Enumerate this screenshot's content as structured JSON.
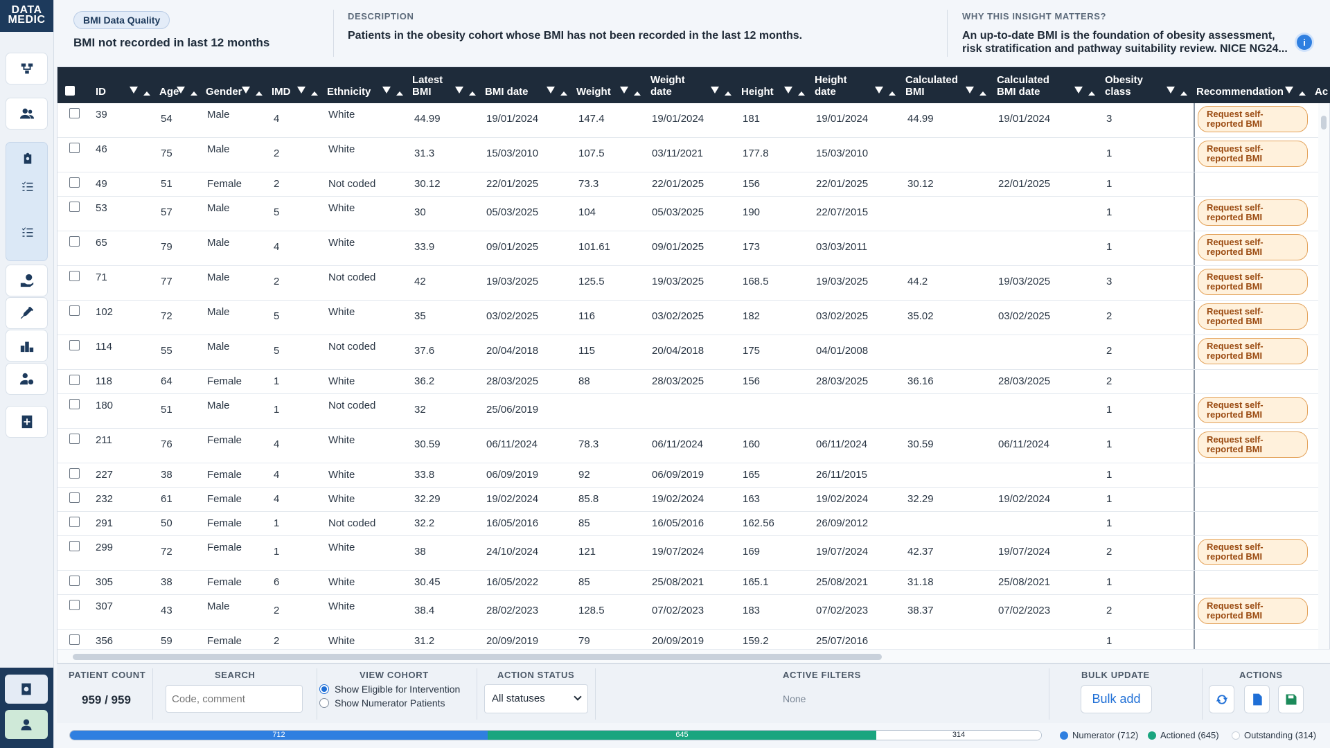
{
  "app": {
    "logo_line1": "DATA",
    "logo_line2": "MEDIC"
  },
  "header": {
    "badge": "BMI Data Quality",
    "title": "BMI not recorded in last 12 months",
    "description_label": "DESCRIPTION",
    "description": "Patients in the obesity cohort whose BMI has not been recorded in the last 12 months.",
    "why_label": "WHY THIS INSIGHT MATTERS?",
    "why_line1": "An up-to-date BMI is the foundation of obesity assessment,",
    "why_line2": "risk stratification and pathway suitability review. NICE NG24..."
  },
  "table": {
    "columns": {
      "id": "ID",
      "age": "Age",
      "gender": "Gender",
      "imd": "IMD",
      "ethnicity": "Ethnicity",
      "latest_bmi_1": "Latest",
      "latest_bmi_2": "BMI",
      "bmi_date": "BMI date",
      "weight": "Weight",
      "weight_date_1": "Weight",
      "weight_date_2": "date",
      "height": "Height",
      "height_date_1": "Height",
      "height_date_2": "date",
      "calc_bmi_1": "Calculated",
      "calc_bmi_2": "BMI",
      "calc_bmi_date_1": "Calculated",
      "calc_bmi_date_2": "BMI date",
      "obesity_1": "Obesity",
      "obesity_2": "class",
      "recommendation": "Recommendation",
      "actions": "Ac"
    },
    "rec_line1": "Request self-",
    "rec_line2": "reported BMI",
    "rows": [
      {
        "id": "39",
        "age": "54",
        "gender": "Male",
        "imd": "4",
        "eth": "White",
        "bmi": "44.99",
        "bmi_date": "19/01/2024",
        "weight": "147.4",
        "weight_date": "19/01/2024",
        "height": "181",
        "height_date": "19/01/2024",
        "calc_bmi": "44.99",
        "calc_bmi_date": "19/01/2024",
        "obesity": "3",
        "rec": true
      },
      {
        "id": "46",
        "age": "75",
        "gender": "Male",
        "imd": "2",
        "eth": "White",
        "bmi": "31.3",
        "bmi_date": "15/03/2010",
        "weight": "107.5",
        "weight_date": "03/11/2021",
        "height": "177.8",
        "height_date": "15/03/2010",
        "calc_bmi": "",
        "calc_bmi_date": "",
        "obesity": "1",
        "rec": true
      },
      {
        "id": "49",
        "age": "51",
        "gender": "Female",
        "imd": "2",
        "eth": "Not coded",
        "bmi": "30.12",
        "bmi_date": "22/01/2025",
        "weight": "73.3",
        "weight_date": "22/01/2025",
        "height": "156",
        "height_date": "22/01/2025",
        "calc_bmi": "30.12",
        "calc_bmi_date": "22/01/2025",
        "obesity": "1",
        "rec": false
      },
      {
        "id": "53",
        "age": "57",
        "gender": "Male",
        "imd": "5",
        "eth": "White",
        "bmi": "30",
        "bmi_date": "05/03/2025",
        "weight": "104",
        "weight_date": "05/03/2025",
        "height": "190",
        "height_date": "22/07/2015",
        "calc_bmi": "",
        "calc_bmi_date": "",
        "obesity": "1",
        "rec": true
      },
      {
        "id": "65",
        "age": "79",
        "gender": "Male",
        "imd": "4",
        "eth": "White",
        "bmi": "33.9",
        "bmi_date": "09/01/2025",
        "weight": "101.61",
        "weight_date": "09/01/2025",
        "height": "173",
        "height_date": "03/03/2011",
        "calc_bmi": "",
        "calc_bmi_date": "",
        "obesity": "1",
        "rec": true
      },
      {
        "id": "71",
        "age": "77",
        "gender": "Male",
        "imd": "2",
        "eth": "Not coded",
        "bmi": "42",
        "bmi_date": "19/03/2025",
        "weight": "125.5",
        "weight_date": "19/03/2025",
        "height": "168.5",
        "height_date": "19/03/2025",
        "calc_bmi": "44.2",
        "calc_bmi_date": "19/03/2025",
        "obesity": "3",
        "rec": true
      },
      {
        "id": "102",
        "age": "72",
        "gender": "Male",
        "imd": "5",
        "eth": "White",
        "bmi": "35",
        "bmi_date": "03/02/2025",
        "weight": "116",
        "weight_date": "03/02/2025",
        "height": "182",
        "height_date": "03/02/2025",
        "calc_bmi": "35.02",
        "calc_bmi_date": "03/02/2025",
        "obesity": "2",
        "rec": true
      },
      {
        "id": "114",
        "age": "55",
        "gender": "Male",
        "imd": "5",
        "eth": "Not coded",
        "bmi": "37.6",
        "bmi_date": "20/04/2018",
        "weight": "115",
        "weight_date": "20/04/2018",
        "height": "175",
        "height_date": "04/01/2008",
        "calc_bmi": "",
        "calc_bmi_date": "",
        "obesity": "2",
        "rec": true
      },
      {
        "id": "118",
        "age": "64",
        "gender": "Female",
        "imd": "1",
        "eth": "White",
        "bmi": "36.2",
        "bmi_date": "28/03/2025",
        "weight": "88",
        "weight_date": "28/03/2025",
        "height": "156",
        "height_date": "28/03/2025",
        "calc_bmi": "36.16",
        "calc_bmi_date": "28/03/2025",
        "obesity": "2",
        "rec": false
      },
      {
        "id": "180",
        "age": "51",
        "gender": "Male",
        "imd": "1",
        "eth": "Not coded",
        "bmi": "32",
        "bmi_date": "25/06/2019",
        "weight": "",
        "weight_date": "",
        "height": "",
        "height_date": "",
        "calc_bmi": "",
        "calc_bmi_date": "",
        "obesity": "1",
        "rec": true
      },
      {
        "id": "211",
        "age": "76",
        "gender": "Female",
        "imd": "4",
        "eth": "White",
        "bmi": "30.59",
        "bmi_date": "06/11/2024",
        "weight": "78.3",
        "weight_date": "06/11/2024",
        "height": "160",
        "height_date": "06/11/2024",
        "calc_bmi": "30.59",
        "calc_bmi_date": "06/11/2024",
        "obesity": "1",
        "rec": true
      },
      {
        "id": "227",
        "age": "38",
        "gender": "Female",
        "imd": "4",
        "eth": "White",
        "bmi": "33.8",
        "bmi_date": "06/09/2019",
        "weight": "92",
        "weight_date": "06/09/2019",
        "height": "165",
        "height_date": "26/11/2015",
        "calc_bmi": "",
        "calc_bmi_date": "",
        "obesity": "1",
        "rec": false
      },
      {
        "id": "232",
        "age": "61",
        "gender": "Female",
        "imd": "4",
        "eth": "White",
        "bmi": "32.29",
        "bmi_date": "19/02/2024",
        "weight": "85.8",
        "weight_date": "19/02/2024",
        "height": "163",
        "height_date": "19/02/2024",
        "calc_bmi": "32.29",
        "calc_bmi_date": "19/02/2024",
        "obesity": "1",
        "rec": false
      },
      {
        "id": "291",
        "age": "50",
        "gender": "Female",
        "imd": "1",
        "eth": "Not coded",
        "bmi": "32.2",
        "bmi_date": "16/05/2016",
        "weight": "85",
        "weight_date": "16/05/2016",
        "height": "162.56",
        "height_date": "26/09/2012",
        "calc_bmi": "",
        "calc_bmi_date": "",
        "obesity": "1",
        "rec": false
      },
      {
        "id": "299",
        "age": "72",
        "gender": "Female",
        "imd": "1",
        "eth": "White",
        "bmi": "38",
        "bmi_date": "24/10/2024",
        "weight": "121",
        "weight_date": "19/07/2024",
        "height": "169",
        "height_date": "19/07/2024",
        "calc_bmi": "42.37",
        "calc_bmi_date": "19/07/2024",
        "obesity": "2",
        "rec": true
      },
      {
        "id": "305",
        "age": "38",
        "gender": "Female",
        "imd": "6",
        "eth": "White",
        "bmi": "30.45",
        "bmi_date": "16/05/2022",
        "weight": "85",
        "weight_date": "25/08/2021",
        "height": "165.1",
        "height_date": "25/08/2021",
        "calc_bmi": "31.18",
        "calc_bmi_date": "25/08/2021",
        "obesity": "1",
        "rec": false
      },
      {
        "id": "307",
        "age": "43",
        "gender": "Male",
        "imd": "2",
        "eth": "White",
        "bmi": "38.4",
        "bmi_date": "28/02/2023",
        "weight": "128.5",
        "weight_date": "07/02/2023",
        "height": "183",
        "height_date": "07/02/2023",
        "calc_bmi": "38.37",
        "calc_bmi_date": "07/02/2023",
        "obesity": "2",
        "rec": true
      },
      {
        "id": "356",
        "age": "59",
        "gender": "Female",
        "imd": "2",
        "eth": "White",
        "bmi": "31.2",
        "bmi_date": "20/09/2019",
        "weight": "79",
        "weight_date": "20/09/2019",
        "height": "159.2",
        "height_date": "25/07/2016",
        "calc_bmi": "",
        "calc_bmi_date": "",
        "obesity": "1",
        "rec": false
      }
    ]
  },
  "footer": {
    "count_label": "PATIENT COUNT",
    "count": "959 / 959",
    "search_label": "SEARCH",
    "search_placeholder": "Code, comment",
    "cohort_label": "VIEW COHORT",
    "cohort_opt1": "Show Eligible for Intervention",
    "cohort_opt2": "Show Numerator Patients",
    "status_label": "ACTION STATUS",
    "status_value": "All statuses",
    "filters_label": "ACTIVE FILTERS",
    "filters_value": "None",
    "bulk_label": "BULK UPDATE",
    "bulk_button": "Bulk add",
    "actions_label": "ACTIONS"
  },
  "progress": {
    "numerator": 712,
    "actioned": 645,
    "outstanding": 314,
    "numerator_label": "712",
    "actioned_label": "645",
    "outstanding_label": "314",
    "legend_numerator": "Numerator (712)",
    "legend_actioned": "Actioned (645)",
    "legend_outstanding": "Outstanding (314)",
    "colors": {
      "numerator": "#2f7fe0",
      "actioned": "#1aa57f",
      "outstanding": "#ffffff"
    }
  }
}
